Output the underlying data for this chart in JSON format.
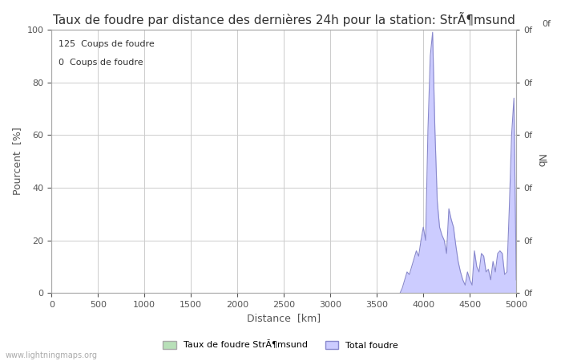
{
  "title": "Taux de foudre par distance des dernières 24h pour la station: StrÃ¶msund",
  "xlabel": "Distance  [km]",
  "ylabel_left": "Pourcent  [%]",
  "ylabel_right": "Nb",
  "legend_label1": "Taux de foudre StrÃ¶msund",
  "legend_label2": "Total foudre",
  "annotation1": "125  Coups de foudre",
  "annotation2": "0  Coups de foudre",
  "watermark": "www.lightningmaps.org",
  "xlim": [
    0,
    5000
  ],
  "ylim": [
    0,
    100
  ],
  "xticks": [
    0,
    500,
    1000,
    1500,
    2000,
    2500,
    3000,
    3500,
    4000,
    4500,
    5000
  ],
  "yticks_left": [
    0,
    20,
    40,
    60,
    80,
    100
  ],
  "right_ytick_labels": [
    "0f",
    "0f",
    "0f",
    "0f",
    "0f",
    "0f"
  ],
  "right_ytick_positions": [
    0,
    20,
    40,
    60,
    80,
    100
  ],
  "top_right_label": "0f",
  "line_color": "#8888cc",
  "fill_color": "#ccccff",
  "background_color": "#ffffff",
  "grid_color": "#cccccc",
  "title_fontsize": 11,
  "axis_fontsize": 9,
  "tick_fontsize": 8,
  "x_data": [
    3750,
    3775,
    3800,
    3825,
    3850,
    3875,
    3900,
    3925,
    3950,
    3975,
    4000,
    4025,
    4050,
    4075,
    4100,
    4125,
    4150,
    4175,
    4200,
    4225,
    4250,
    4275,
    4300,
    4325,
    4350,
    4375,
    4400,
    4425,
    4450,
    4475,
    4500,
    4525,
    4550,
    4575,
    4600,
    4625,
    4650,
    4675,
    4700,
    4725,
    4750,
    4775,
    4800,
    4825,
    4850,
    4875,
    4900,
    4925,
    4950,
    4975,
    5000
  ],
  "y_data": [
    0,
    2,
    5,
    8,
    7,
    10,
    13,
    16,
    14,
    20,
    25,
    20,
    62,
    90,
    99,
    62,
    35,
    25,
    22,
    20,
    15,
    32,
    28,
    25,
    18,
    12,
    8,
    5,
    3,
    8,
    5,
    3,
    16,
    10,
    8,
    15,
    14,
    8,
    9,
    5,
    12,
    8,
    15,
    16,
    15,
    7,
    8,
    32,
    60,
    74,
    5
  ]
}
